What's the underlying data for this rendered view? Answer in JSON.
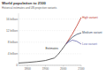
{
  "chart_data": {
    "type": "line",
    "title": "World population to 2100",
    "subtitle": "Historical estimates and UN projection variants",
    "x": [
      1750,
      1800,
      1850,
      1900,
      1950,
      1970,
      1990,
      2015,
      2030,
      2050,
      2075,
      2100
    ],
    "series": [
      {
        "name": "Estimates",
        "color": "#3a3a3a",
        "values": [
          0.79,
          0.98,
          1.26,
          1.65,
          2.53,
          3.7,
          5.3,
          7.38,
          null,
          null,
          null,
          null
        ]
      },
      {
        "name": "High variant",
        "color": "#c0392b",
        "values": [
          null,
          null,
          null,
          null,
          null,
          null,
          null,
          7.38,
          8.9,
          10.8,
          13.6,
          16.6
        ]
      },
      {
        "name": "Medium variant",
        "color": "#3c4e66",
        "values": [
          null,
          null,
          null,
          null,
          null,
          null,
          null,
          7.38,
          8.5,
          9.7,
          10.7,
          11.2
        ]
      },
      {
        "name": "Low variant",
        "color": "#6d6fb0",
        "values": [
          null,
          null,
          null,
          null,
          null,
          null,
          null,
          7.38,
          8.1,
          8.7,
          8.3,
          7.3
        ]
      }
    ],
    "xlim": [
      1750,
      2100
    ],
    "xticks": [
      1800,
      1900,
      2000,
      2100
    ],
    "ylim": [
      0,
      18
    ],
    "yticks": [
      {
        "value": 0,
        "label": "0"
      },
      {
        "value": 4,
        "label": "4 billion"
      },
      {
        "value": 8,
        "label": "8 billion"
      },
      {
        "value": 12,
        "label": "12 billion"
      },
      {
        "value": 16,
        "label": "16 billion"
      }
    ],
    "grid": true
  }
}
